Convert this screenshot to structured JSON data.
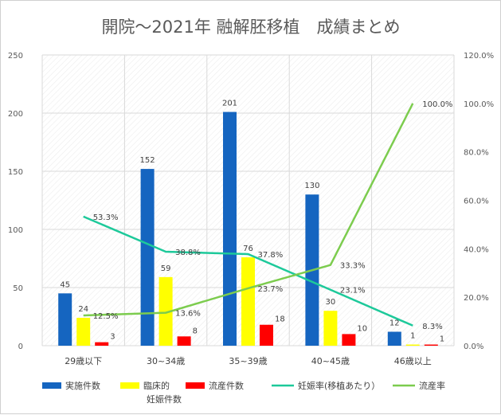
{
  "chart_data": {
    "type": "bar",
    "title": "開院～2021年 融解胚移植　成績まとめ",
    "categories": [
      "29歳以下",
      "30~34歳",
      "35~39歳",
      "40~45歳",
      "46歳以上"
    ],
    "y_left": {
      "ticks": [
        "0",
        "50",
        "100",
        "150",
        "200",
        "250"
      ],
      "ylim": [
        0,
        250
      ]
    },
    "y_right": {
      "ticks": [
        "0.0%",
        "20.0%",
        "40.0%",
        "60.0%",
        "80.0%",
        "100.0%",
        "120.0%"
      ],
      "ylim": [
        0,
        120
      ]
    },
    "series": [
      {
        "name": "実施件数",
        "type": "bar",
        "color": "#1565c0",
        "values": [
          45,
          152,
          201,
          130,
          12
        ],
        "labels": [
          "45",
          "152",
          "201",
          "130",
          "12"
        ]
      },
      {
        "name": "臨床的妊娠件数",
        "name_lines": [
          "臨床的",
          "妊娠件数"
        ],
        "type": "bar",
        "color": "#ffff00",
        "values": [
          24,
          59,
          76,
          30,
          1
        ],
        "labels": [
          "24",
          "59",
          "76",
          "30",
          "1"
        ]
      },
      {
        "name": "流産件数",
        "type": "bar",
        "color": "#ff0000",
        "values": [
          3,
          8,
          18,
          10,
          1
        ],
        "labels": [
          "3",
          "8",
          "18",
          "10",
          "1"
        ]
      },
      {
        "name": "妊娠率(移植あたり）",
        "type": "line",
        "axis": "right",
        "color": "#1dc99a",
        "values": [
          53.3,
          38.8,
          37.8,
          23.1,
          8.3
        ],
        "labels": [
          "53.3%",
          "38.8%",
          "37.8%",
          "23.1%",
          "8.3%"
        ]
      },
      {
        "name": "流産率",
        "type": "line",
        "axis": "right",
        "color": "#7ccc4e",
        "values": [
          12.5,
          13.6,
          23.7,
          33.3,
          100.0
        ],
        "labels": [
          "12.5%",
          "13.6%",
          "23.7%",
          "33.3%",
          "100.0%"
        ]
      }
    ],
    "grid": true,
    "legend": "bottom"
  }
}
